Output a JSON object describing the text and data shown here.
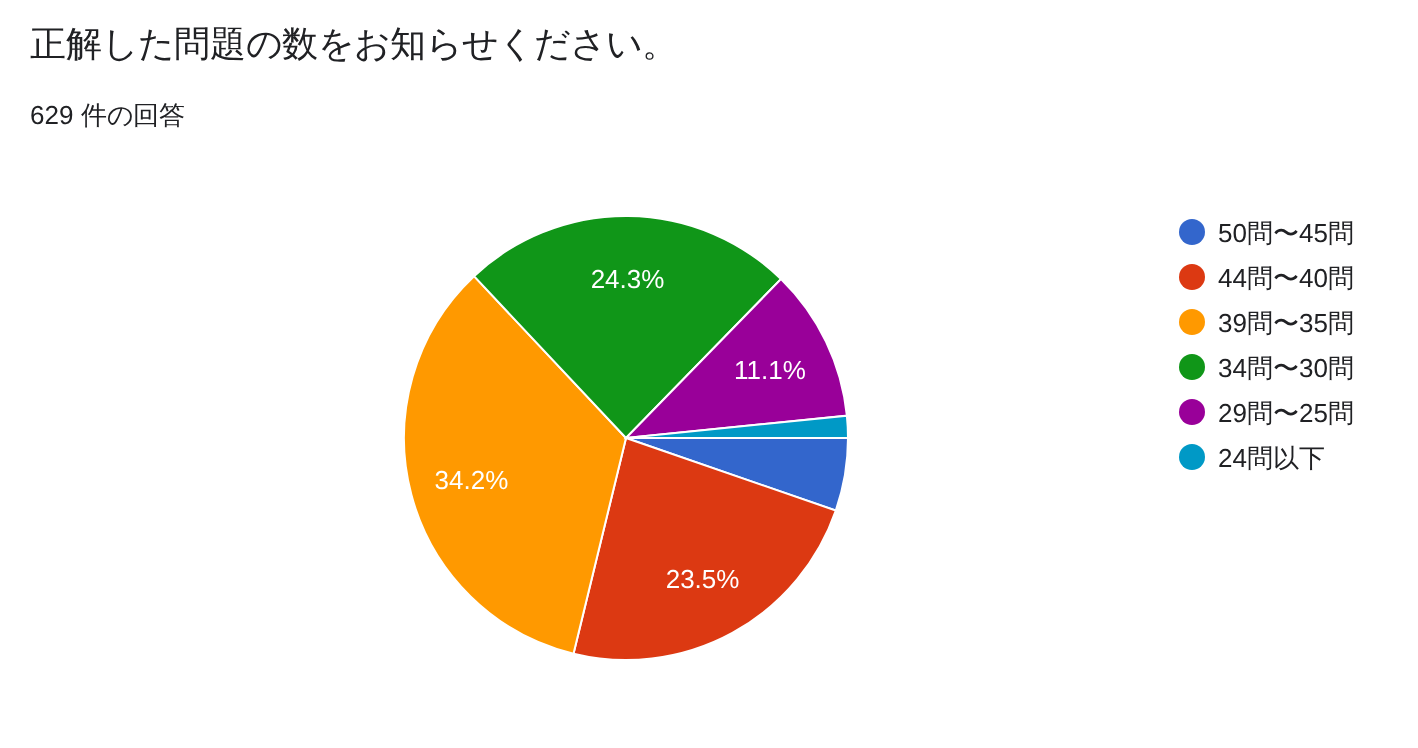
{
  "chart_data": {
    "type": "pie",
    "title": "正解した問題の数をお知らせください。",
    "subtitle": "629 件の回答",
    "categories": [
      "50問〜45問",
      "44問〜40問",
      "39問〜35問",
      "34問〜30問",
      "29問〜25問",
      "24問以下"
    ],
    "values": [
      5.3,
      23.5,
      34.2,
      24.3,
      11.1,
      1.6
    ],
    "colors": [
      "#3366cc",
      "#dc3912",
      "#ff9900",
      "#109618",
      "#990099",
      "#0099c6"
    ],
    "value_labels": [
      null,
      "23.5%",
      "34.2%",
      "24.3%",
      "11.1%",
      null
    ],
    "legend": "right"
  }
}
